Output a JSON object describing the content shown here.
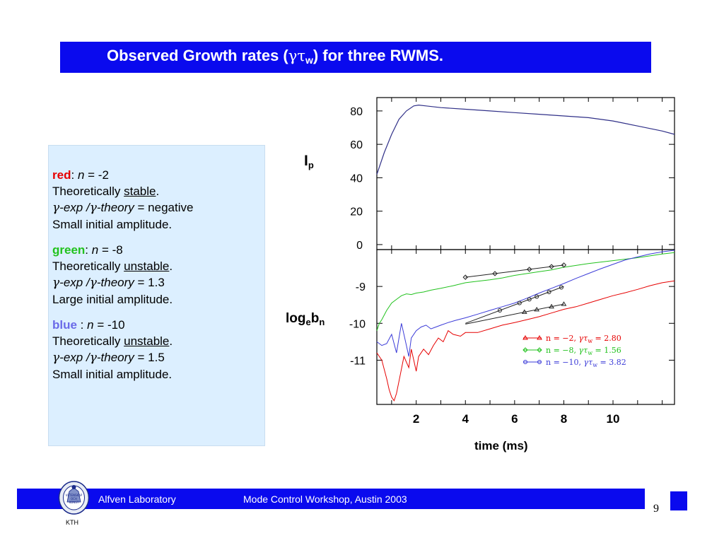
{
  "title": {
    "prefix": "Observed Growth rates (",
    "gamma": "γ",
    "tau": "τ",
    "sub": "w",
    "suffix": ") for three RWMS."
  },
  "info": [
    {
      "color_name": "red",
      "color_hex": "#e60000",
      "sep": ":",
      "n_label": "n",
      "n_value": " = -2",
      "theory_prefix": "Theoretically ",
      "theory_word": "stable",
      "theory_end": ".",
      "gamma_exp": "-exp /",
      "gamma_theory": "-theory",
      "ratio": " = negative",
      "amplitude": "Small initial amplitude."
    },
    {
      "color_name": "green",
      "color_hex": "#22c21e",
      "sep": ":",
      "n_label": "n",
      "n_value": " = -8",
      "theory_prefix": "Theoretically ",
      "theory_word": "unstable",
      "theory_end": ".",
      "gamma_exp": "-exp /",
      "gamma_theory": "-theory",
      "ratio": " = 1.3",
      "amplitude": "Large initial amplitude."
    },
    {
      "color_name": "blue",
      "color_hex": "#6a6ae8",
      "sep": " :",
      "n_label": "n",
      "n_value": " = -10",
      "theory_prefix": "Theoretically ",
      "theory_word": "unstable",
      "theory_end": ".",
      "gamma_exp": "-exp /",
      "gamma_theory": "-theory",
      "ratio": " = 1.5",
      "amplitude": "Small initial amplitude."
    }
  ],
  "labels": {
    "ip_main": "I",
    "ip_sub": "p",
    "logb_a": "log",
    "logb_e": "e",
    "logb_b": "b",
    "logb_n": "n",
    "xlabel": "time (ms)"
  },
  "chart_data": [
    {
      "type": "line",
      "ylabel": "Ip",
      "xlim": [
        0.4,
        12.5
      ],
      "ylim": [
        -3,
        88
      ],
      "yticks": [
        0,
        20,
        40,
        60,
        80
      ],
      "series": [
        {
          "color": "#303088",
          "x": [
            0.4,
            0.7,
            1.0,
            1.3,
            1.6,
            1.9,
            2.1,
            2.4,
            3.0,
            4.0,
            5.0,
            6.0,
            7.0,
            8.0,
            9.0,
            10.0,
            11.0,
            12.0,
            12.5
          ],
          "y": [
            42,
            55,
            66,
            75,
            80,
            83,
            83.5,
            83,
            82,
            81,
            80,
            79,
            78,
            77,
            76,
            74,
            71,
            68,
            66
          ]
        }
      ]
    },
    {
      "type": "line",
      "ylabel": "logebn",
      "xlabel": "time (ms)",
      "xlim": [
        0.4,
        12.5
      ],
      "xticks": [
        2,
        4,
        6,
        8,
        10
      ],
      "ylim": [
        -12.2,
        -8.0
      ],
      "yticks": [
        -9,
        -10,
        -11
      ],
      "legend_position": "lower-right",
      "legend": [
        {
          "n": "n = −2,",
          "gt": "γτ",
          "gt_sub": "w",
          "val": " = 2.80",
          "color": "#e60000",
          "marker": "triangle"
        },
        {
          "n": "n = −8,",
          "gt": "γτ",
          "gt_sub": "w",
          "val": " = 1.56",
          "color": "#22c21e",
          "marker": "diamond"
        },
        {
          "n": "n = −10,",
          "gt": "γτ",
          "gt_sub": "w",
          "val": " = 3.82",
          "color": "#3b3bd8",
          "marker": "circle"
        }
      ],
      "series": [
        {
          "name": "n = −2",
          "color": "#e60000",
          "x": [
            0.4,
            0.6,
            0.8,
            0.9,
            1.0,
            1.1,
            1.2,
            1.35,
            1.5,
            1.7,
            1.8,
            1.9,
            2.0,
            2.1,
            2.3,
            2.5,
            2.7,
            2.9,
            3.1,
            3.3,
            3.5,
            3.8,
            4.0,
            4.5,
            5.0,
            5.5,
            6.0,
            6.5,
            7.0,
            7.5,
            8.0,
            8.5,
            9.0,
            9.5,
            10.0,
            10.5,
            11.0,
            11.5,
            12.0,
            12.5
          ],
          "y": [
            -10.8,
            -11.0,
            -11.5,
            -11.8,
            -12.0,
            -12.1,
            -11.9,
            -11.4,
            -10.9,
            -11.2,
            -10.7,
            -11.0,
            -11.3,
            -10.9,
            -10.7,
            -10.85,
            -10.6,
            -10.4,
            -10.5,
            -10.2,
            -10.3,
            -10.35,
            -10.25,
            -10.25,
            -10.15,
            -10.05,
            -9.98,
            -9.9,
            -9.82,
            -9.72,
            -9.62,
            -9.55,
            -9.45,
            -9.35,
            -9.25,
            -9.17,
            -9.08,
            -8.98,
            -8.9,
            -8.85
          ]
        },
        {
          "name": "n = −8",
          "color": "#22c21e",
          "x": [
            0.4,
            0.5,
            0.6,
            0.8,
            1.0,
            1.2,
            1.4,
            1.6,
            1.8,
            2.0,
            2.3,
            2.6,
            3.0,
            3.5,
            4.0,
            4.5,
            5.0,
            5.5,
            6.0,
            6.5,
            7.0,
            7.5,
            8.0,
            9.0,
            10.0,
            11.0,
            12.0,
            12.5
          ],
          "y": [
            -10.2,
            -10.0,
            -9.9,
            -9.65,
            -9.45,
            -9.35,
            -9.25,
            -9.2,
            -9.22,
            -9.18,
            -9.15,
            -9.1,
            -9.05,
            -8.98,
            -8.9,
            -8.86,
            -8.82,
            -8.77,
            -8.7,
            -8.65,
            -8.6,
            -8.55,
            -8.48,
            -8.38,
            -8.3,
            -8.22,
            -8.12,
            -8.08
          ]
        },
        {
          "name": "n = −10",
          "color": "#3b3bd8",
          "x": [
            0.4,
            0.6,
            0.8,
            1.0,
            1.2,
            1.4,
            1.6,
            1.7,
            1.8,
            2.0,
            2.2,
            2.4,
            2.6,
            2.8,
            3.0,
            3.3,
            3.6,
            4.0,
            4.5,
            5.0,
            5.5,
            6.0,
            6.5,
            7.0,
            7.5,
            8.0,
            8.5,
            9.0,
            9.5,
            10.0,
            10.5,
            11.0,
            11.5,
            12.0,
            12.5
          ],
          "y": [
            -10.5,
            -10.6,
            -10.55,
            -10.3,
            -10.8,
            -10.0,
            -10.6,
            -10.9,
            -10.4,
            -10.2,
            -10.1,
            -10.05,
            -10.15,
            -10.1,
            -10.05,
            -9.98,
            -9.92,
            -9.85,
            -9.75,
            -9.65,
            -9.55,
            -9.45,
            -9.32,
            -9.18,
            -9.05,
            -8.92,
            -8.78,
            -8.65,
            -8.52,
            -8.4,
            -8.28,
            -8.2,
            -8.12,
            -8.06,
            -8.02
          ]
        }
      ],
      "fits": [
        {
          "color": "#222222",
          "marker": "triangle",
          "x": [
            4.0,
            8.0
          ],
          "y": [
            -10.02,
            -9.48
          ],
          "marker_x": [
            6.4,
            6.9,
            7.5,
            8.0
          ]
        },
        {
          "color": "#222222",
          "marker": "diamond",
          "x": [
            4.0,
            8.0
          ],
          "y": [
            -8.75,
            -8.42
          ],
          "marker_x": [
            4.0,
            5.2,
            6.6,
            7.5,
            8.0
          ]
        },
        {
          "color": "#222222",
          "marker": "circle",
          "x": [
            4.0,
            8.0
          ],
          "y": [
            -10.0,
            -9.0
          ],
          "marker_x": [
            5.4,
            6.2,
            6.6,
            6.9,
            7.4,
            7.9
          ]
        }
      ]
    }
  ],
  "footer": {
    "lab": "Alfven Laboratory",
    "workshop": "Mode Control Workshop, Austin 2003",
    "page": "9",
    "seal_text": "KTH",
    "seal_ring": [
      "VETENSKAP",
      "OCH",
      "KONST"
    ]
  }
}
